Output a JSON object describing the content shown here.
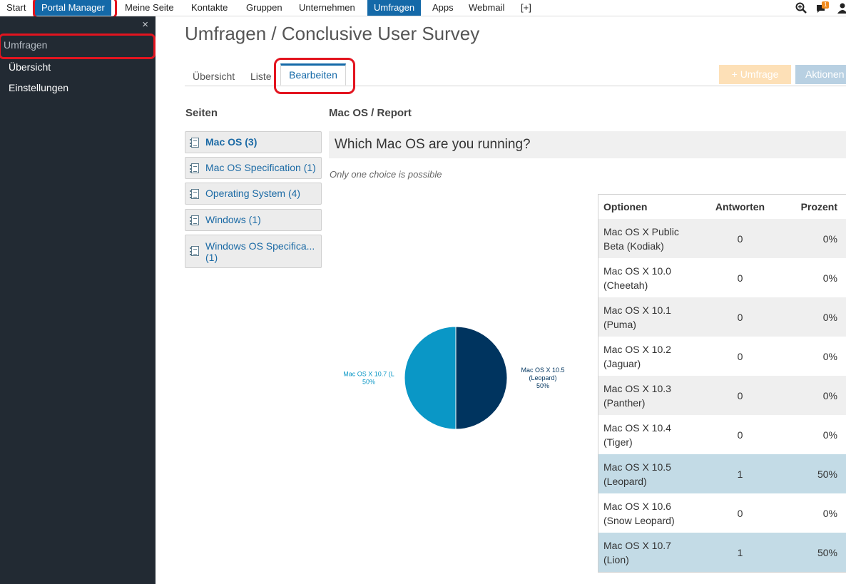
{
  "topnav": {
    "items": [
      {
        "label": "Start"
      },
      {
        "label": "Portal Manager"
      },
      {
        "label": "Meine Seite"
      },
      {
        "label": "Kontakte"
      },
      {
        "label": "Gruppen"
      },
      {
        "label": "Unternehmen"
      },
      {
        "label": "Umfragen"
      },
      {
        "label": "Apps"
      },
      {
        "label": "Webmail"
      },
      {
        "label": "[+]"
      }
    ],
    "active_item": "Umfragen",
    "notification_count": "1",
    "tools": [
      "search-zoom-icon",
      "chat-bubble-icon",
      "user-icon"
    ]
  },
  "sidebar": {
    "close_glyph": "×",
    "heading": "Umfragen",
    "items": [
      {
        "label": "Übersicht"
      },
      {
        "label": "Einstellungen"
      }
    ]
  },
  "main": {
    "title": "Umfragen / Conclusive User Survey",
    "tabs": [
      {
        "label": "Übersicht"
      },
      {
        "label": "Liste"
      },
      {
        "label": "Bearbeiten"
      }
    ],
    "active_tab": "Bearbeiten",
    "buttons": {
      "umfrage": "+ Umfrage",
      "aktionen": "Aktionen"
    },
    "pages_heading": "Seiten",
    "pages": [
      {
        "label": "Mac OS (3)",
        "active": true
      },
      {
        "label": "Mac OS Specification (1)"
      },
      {
        "label": "Operating System (4)"
      },
      {
        "label": "Windows (1)"
      },
      {
        "label": "Windows OS Specifica... (1)"
      }
    ],
    "report_heading": "Mac OS / Report",
    "question": "Which Mac OS are you running?",
    "hint": "Only one choice is possible",
    "table": {
      "headers": [
        "Optionen",
        "Antworten",
        "Prozent"
      ],
      "rows": [
        {
          "option": "Mac OS X Public Beta (Kodiak)",
          "answers": "0",
          "percent": "0%"
        },
        {
          "option": "Mac OS X 10.0 (Cheetah)",
          "answers": "0",
          "percent": "0%"
        },
        {
          "option": "Mac OS X 10.1 (Puma)",
          "answers": "0",
          "percent": "0%"
        },
        {
          "option": "Mac OS X 10.2 (Jaguar)",
          "answers": "0",
          "percent": "0%"
        },
        {
          "option": "Mac OS X 10.3 (Panther)",
          "answers": "0",
          "percent": "0%"
        },
        {
          "option": "Mac OS X 10.4 (Tiger)",
          "answers": "0",
          "percent": "0%"
        },
        {
          "option": "Mac OS X 10.5 (Leopard)",
          "answers": "1",
          "percent": "50%"
        },
        {
          "option": "Mac OS X 10.6 (Snow Leopard)",
          "answers": "0",
          "percent": "0%"
        },
        {
          "option": "Mac OS X 10.7 (Lion)",
          "answers": "1",
          "percent": "50%"
        }
      ]
    }
  },
  "chart_data": {
    "type": "pie",
    "slices": [
      {
        "label": "Mac OS X 10.5 (Leopard)",
        "value": 50,
        "percent_label": "50%",
        "color": "#00345f",
        "label_lines": [
          "Mac OS X 10.5",
          "(Leopard)",
          "50%"
        ]
      },
      {
        "label": "Mac OS X 10.7 (Lion)",
        "value": 50,
        "percent_label": "50%",
        "color": "#0a97c6",
        "label_lines": [
          "Mac OS X 10.7 (L",
          "50%"
        ]
      }
    ]
  },
  "colors": {
    "accent": "#1469a8",
    "highlight_annotation": "#e3141f",
    "sidebar_bg": "#222a33",
    "button_umfrage": "#fde0b7",
    "button_aktionen": "#b8d0e2",
    "row_highlight": "#c3dbe6"
  }
}
